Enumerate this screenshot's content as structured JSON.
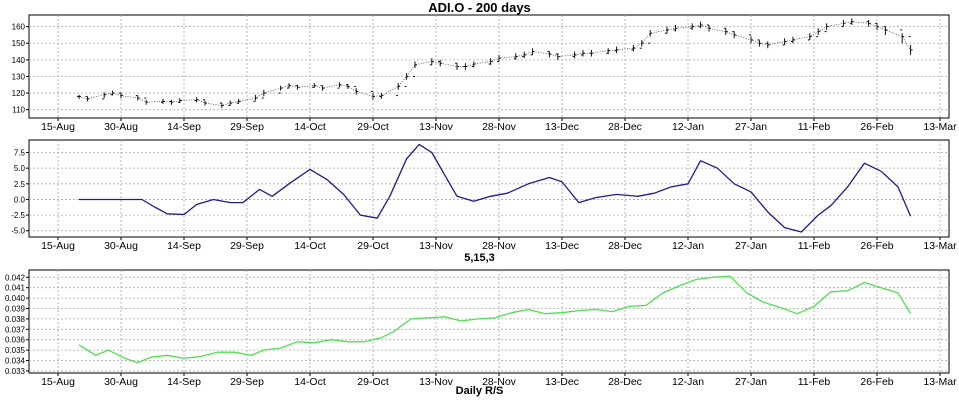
{
  "chart_data": [
    {
      "type": "ohlc",
      "title": "ADI.O - 200 days",
      "xlabel": "",
      "ylabel": "",
      "x_ticks": [
        "15-Aug",
        "30-Aug",
        "14-Sep",
        "29-Sep",
        "14-Oct",
        "29-Oct",
        "13-Nov",
        "28-Nov",
        "13-Dec",
        "28-Dec",
        "12-Jan",
        "27-Jan",
        "11-Feb",
        "26-Feb",
        "13-Mar"
      ],
      "y_ticks": [
        110,
        120,
        130,
        140,
        150,
        160
      ],
      "ylim": [
        105,
        167
      ],
      "grid": true,
      "series": [
        {
          "name": "",
          "dates": [
            "2013-08-20",
            "2013-08-22",
            "2013-08-26",
            "2013-08-28",
            "2013-08-30",
            "2013-09-03",
            "2013-09-05",
            "2013-09-09",
            "2013-09-11",
            "2013-09-13",
            "2013-09-17",
            "2013-09-19",
            "2013-09-23",
            "2013-09-25",
            "2013-09-27",
            "2013-10-01",
            "2013-10-03",
            "2013-10-07",
            "2013-10-09",
            "2013-10-11",
            "2013-10-15",
            "2013-10-17",
            "2013-10-21",
            "2013-10-23",
            "2013-10-25",
            "2013-10-29",
            "2013-10-31",
            "2013-11-04",
            "2013-11-06",
            "2013-11-08",
            "2013-11-12",
            "2013-11-14",
            "2013-11-18",
            "2013-11-20",
            "2013-11-22",
            "2013-11-26",
            "2013-11-28",
            "2013-12-02",
            "2013-12-04",
            "2013-12-06",
            "2013-12-10",
            "2013-12-12",
            "2013-12-16",
            "2013-12-18",
            "2013-12-20",
            "2013-12-24",
            "2013-12-26",
            "2013-12-30",
            "2014-01-01",
            "2014-01-03",
            "2014-01-07",
            "2014-01-09",
            "2014-01-13",
            "2014-01-15",
            "2014-01-17",
            "2014-01-21",
            "2014-01-23",
            "2014-01-27",
            "2014-01-29",
            "2014-01-31",
            "2014-02-04",
            "2014-02-06",
            "2014-02-10",
            "2014-02-12",
            "2014-02-14",
            "2014-02-18",
            "2014-02-20",
            "2014-02-24",
            "2014-02-26",
            "2014-02-28",
            "2014-03-04",
            "2014-03-06"
          ],
          "close": [
            118,
            116.5,
            119,
            120,
            118.5,
            117,
            114.5,
            115,
            114.5,
            115.5,
            116,
            114,
            112.5,
            114,
            115,
            117,
            120,
            123,
            124.5,
            123.5,
            124.5,
            123,
            125,
            124,
            121,
            118,
            118.5,
            124,
            130,
            137,
            139,
            138,
            136,
            136,
            137.5,
            139,
            141,
            142,
            143,
            145,
            143.5,
            142,
            143,
            144,
            144,
            145.5,
            146,
            147,
            150,
            156,
            158,
            159,
            160,
            161,
            159,
            157,
            155,
            152,
            150,
            149,
            151,
            152,
            154,
            157,
            160,
            162,
            163,
            162,
            160,
            158,
            154,
            146
          ],
          "high": [
            119,
            118,
            120.5,
            121.5,
            120,
            118.5,
            116,
            116.5,
            116,
            117,
            117.5,
            115.5,
            114,
            115.5,
            116.5,
            119,
            122,
            124.5,
            126,
            125,
            126,
            124.5,
            126.5,
            125.5,
            123,
            120,
            120,
            126,
            132,
            139,
            141,
            140,
            138,
            138,
            139,
            141,
            143,
            144,
            145,
            147,
            145,
            144,
            145,
            146,
            146,
            147,
            148,
            149,
            152,
            158,
            160,
            161,
            162,
            163,
            161,
            159,
            157,
            154,
            152,
            151,
            153,
            154,
            156,
            159,
            162,
            164,
            165,
            164,
            162,
            160,
            156,
            149
          ],
          "low": [
            116.5,
            115,
            117,
            118.5,
            117,
            115.5,
            113,
            113.5,
            113,
            114,
            114.5,
            112.5,
            111,
            112.5,
            113.5,
            115.5,
            118,
            121.5,
            123,
            122,
            123,
            121.5,
            123.5,
            122.5,
            119,
            116,
            116.5,
            122,
            128,
            135,
            137,
            136,
            134,
            134,
            135.5,
            137,
            139,
            140,
            141,
            143,
            141.5,
            140,
            141,
            142,
            142,
            143.5,
            144,
            145,
            148,
            154,
            156,
            157,
            158,
            159,
            157,
            155,
            153,
            150,
            148,
            147,
            149,
            150,
            152,
            155,
            158,
            160,
            161,
            160,
            158,
            155,
            150,
            143
          ]
        }
      ]
    },
    {
      "type": "line",
      "title": "5,15,3",
      "xlabel": "",
      "ylabel": "",
      "x_ticks": [
        "15-Aug",
        "30-Aug",
        "14-Sep",
        "29-Sep",
        "14-Oct",
        "29-Oct",
        "13-Nov",
        "28-Nov",
        "13-Dec",
        "28-Dec",
        "12-Jan",
        "27-Jan",
        "11-Feb",
        "26-Feb",
        "13-Mar"
      ],
      "y_ticks": [
        -5.0,
        -2.5,
        0.0,
        2.5,
        5.0,
        7.5
      ],
      "ylim": [
        -6,
        9.5
      ],
      "grid": true,
      "series": [
        {
          "name": "",
          "color": "#1c1c8c",
          "dates": [
            "2013-08-20",
            "2013-08-25",
            "2013-08-30",
            "2013-09-04",
            "2013-09-07",
            "2013-09-10",
            "2013-09-14",
            "2013-09-17",
            "2013-09-21",
            "2013-09-25",
            "2013-09-28",
            "2013-10-02",
            "2013-10-05",
            "2013-10-09",
            "2013-10-14",
            "2013-10-18",
            "2013-10-22",
            "2013-10-26",
            "2013-10-30",
            "2013-11-02",
            "2013-11-06",
            "2013-11-09",
            "2013-11-12",
            "2013-11-15",
            "2013-11-18",
            "2013-11-22",
            "2013-11-26",
            "2013-11-30",
            "2013-12-05",
            "2013-12-10",
            "2013-12-13",
            "2013-12-17",
            "2013-12-21",
            "2013-12-26",
            "2013-12-31",
            "2014-01-04",
            "2014-01-08",
            "2014-01-12",
            "2014-01-15",
            "2014-01-19",
            "2014-01-23",
            "2014-01-27",
            "2014-01-31",
            "2014-02-04",
            "2014-02-08",
            "2014-02-12",
            "2014-02-15",
            "2014-02-19",
            "2014-02-23",
            "2014-02-27",
            "2014-03-03",
            "2014-03-06"
          ],
          "values": [
            0,
            0,
            0,
            0,
            -1.2,
            -2.3,
            -2.4,
            -0.8,
            0,
            -0.5,
            -0.5,
            1.6,
            0.5,
            2.5,
            4.8,
            3.2,
            0.8,
            -2.5,
            -3.0,
            0.5,
            6.5,
            8.8,
            7.5,
            4.0,
            0.5,
            -0.3,
            0.5,
            1.0,
            2.5,
            3.5,
            2.8,
            -0.5,
            0.3,
            0.8,
            0.5,
            1.0,
            2.0,
            2.5,
            6.2,
            5.0,
            2.5,
            1.2,
            -2.0,
            -4.5,
            -5.2,
            -2.5,
            -1.0,
            2.0,
            5.8,
            4.5,
            2.0,
            -2.7
          ]
        }
      ]
    },
    {
      "type": "line",
      "title": "Daily R/S",
      "xlabel": "",
      "ylabel": "",
      "x_ticks": [
        "15-Aug",
        "30-Aug",
        "14-Sep",
        "29-Sep",
        "14-Oct",
        "29-Oct",
        "13-Nov",
        "28-Nov",
        "13-Dec",
        "28-Dec",
        "12-Jan",
        "27-Jan",
        "11-Feb",
        "26-Feb",
        "13-Mar"
      ],
      "y_ticks": [
        0.033,
        0.034,
        0.035,
        0.036,
        0.037,
        0.038,
        0.039,
        0.04,
        0.041,
        0.042
      ],
      "ylim": [
        0.0328,
        0.0427
      ],
      "grid": true,
      "series": [
        {
          "name": "",
          "color": "#4fe04f",
          "dates": [
            "2013-08-20",
            "2013-08-24",
            "2013-08-27",
            "2013-08-31",
            "2013-09-03",
            "2013-09-06",
            "2013-09-10",
            "2013-09-14",
            "2013-09-18",
            "2013-09-22",
            "2013-09-26",
            "2013-09-30",
            "2013-10-03",
            "2013-10-07",
            "2013-10-11",
            "2013-10-15",
            "2013-10-19",
            "2013-10-23",
            "2013-10-27",
            "2013-10-31",
            "2013-11-03",
            "2013-11-07",
            "2013-11-11",
            "2013-11-15",
            "2013-11-19",
            "2013-11-23",
            "2013-11-27",
            "2013-12-01",
            "2013-12-05",
            "2013-12-09",
            "2013-12-13",
            "2013-12-17",
            "2013-12-21",
            "2013-12-25",
            "2013-12-29",
            "2014-01-02",
            "2014-01-06",
            "2014-01-10",
            "2014-01-14",
            "2014-01-18",
            "2014-01-22",
            "2014-01-26",
            "2014-01-30",
            "2014-02-03",
            "2014-02-07",
            "2014-02-11",
            "2014-02-15",
            "2014-02-19",
            "2014-02-23",
            "2014-02-27",
            "2014-03-03",
            "2014-03-06"
          ],
          "values": [
            0.0355,
            0.0345,
            0.035,
            0.0342,
            0.0338,
            0.0343,
            0.0345,
            0.0342,
            0.0344,
            0.0348,
            0.0348,
            0.0345,
            0.035,
            0.0352,
            0.0358,
            0.0357,
            0.036,
            0.0358,
            0.0358,
            0.0362,
            0.0368,
            0.038,
            0.0381,
            0.0382,
            0.0378,
            0.038,
            0.0381,
            0.0386,
            0.0389,
            0.0385,
            0.0386,
            0.0388,
            0.0389,
            0.0387,
            0.0392,
            0.0393,
            0.0405,
            0.0412,
            0.0418,
            0.042,
            0.0421,
            0.0405,
            0.0396,
            0.0391,
            0.0385,
            0.0392,
            0.0406,
            0.0407,
            0.0415,
            0.041,
            0.0405,
            0.0385
          ]
        }
      ]
    }
  ]
}
